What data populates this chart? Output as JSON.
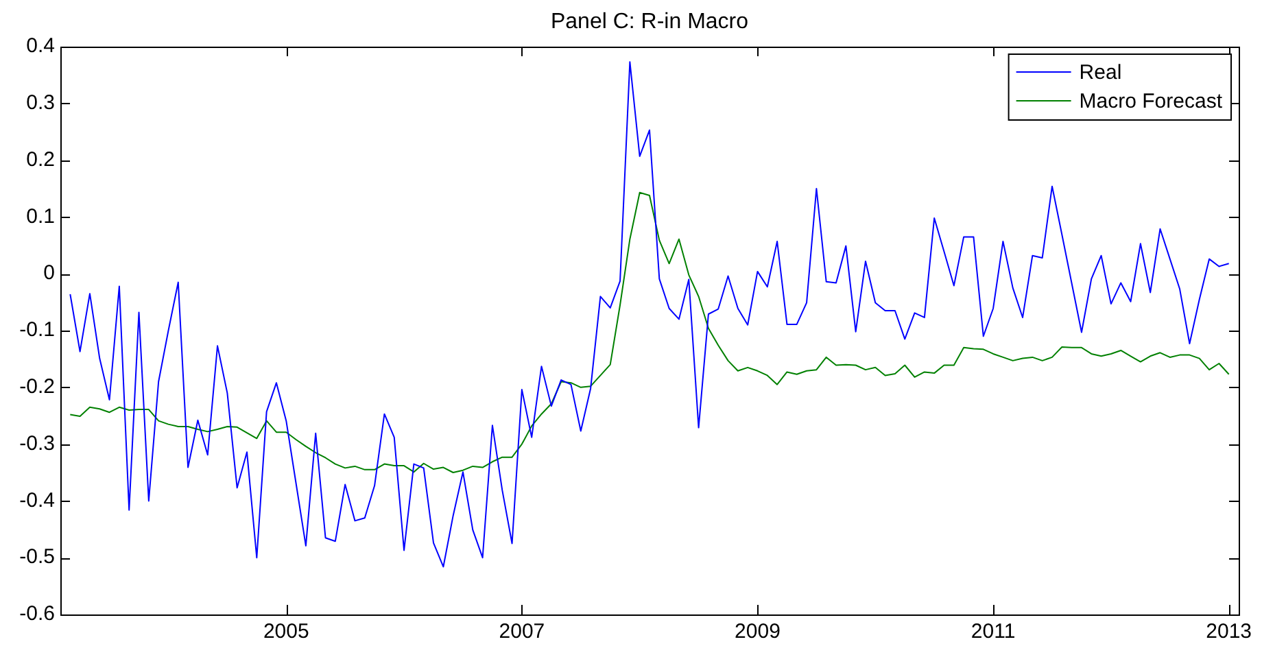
{
  "chart_data": {
    "type": "line",
    "title": "Panel C: R-in Macro",
    "x": [
      "2003-03",
      "2003-04",
      "2003-05",
      "2003-06",
      "2003-07",
      "2003-08",
      "2003-09",
      "2003-10",
      "2003-11",
      "2003-12",
      "2004-01",
      "2004-02",
      "2004-03",
      "2004-04",
      "2004-05",
      "2004-06",
      "2004-07",
      "2004-08",
      "2004-09",
      "2004-10",
      "2004-11",
      "2004-12",
      "2005-01",
      "2005-02",
      "2005-03",
      "2005-04",
      "2005-05",
      "2005-06",
      "2005-07",
      "2005-08",
      "2005-09",
      "2005-10",
      "2005-11",
      "2005-12",
      "2006-01",
      "2006-02",
      "2006-03",
      "2006-04",
      "2006-05",
      "2006-06",
      "2006-07",
      "2006-08",
      "2006-09",
      "2006-10",
      "2006-11",
      "2006-12",
      "2007-01",
      "2007-02",
      "2007-03",
      "2007-04",
      "2007-05",
      "2007-06",
      "2007-07",
      "2007-08",
      "2007-09",
      "2007-10",
      "2007-11",
      "2007-12",
      "2008-01",
      "2008-02",
      "2008-03",
      "2008-04",
      "2008-05",
      "2008-06",
      "2008-07",
      "2008-08",
      "2008-09",
      "2008-10",
      "2008-11",
      "2008-12",
      "2009-01",
      "2009-02",
      "2009-03",
      "2009-04",
      "2009-05",
      "2009-06",
      "2009-07",
      "2009-08",
      "2009-09",
      "2009-10",
      "2009-11",
      "2009-12",
      "2010-01",
      "2010-02",
      "2010-03",
      "2010-04",
      "2010-05",
      "2010-06",
      "2010-07",
      "2010-08",
      "2010-09",
      "2010-10",
      "2010-11",
      "2010-12",
      "2011-01",
      "2011-02",
      "2011-03",
      "2011-04",
      "2011-05",
      "2011-06",
      "2011-07",
      "2011-08",
      "2011-09",
      "2011-10",
      "2011-11",
      "2011-12",
      "2012-01",
      "2012-02",
      "2012-03",
      "2012-04",
      "2012-05",
      "2012-06",
      "2012-07",
      "2012-08",
      "2012-09",
      "2012-10",
      "2012-11",
      "2012-12",
      "2013-01"
    ],
    "series": [
      {
        "name": "Real",
        "color": "#0000ff",
        "values": [
          -0.036,
          -0.137,
          -0.035,
          -0.149,
          -0.222,
          -0.022,
          -0.416,
          -0.068,
          -0.4,
          -0.19,
          -0.1,
          -0.015,
          -0.341,
          -0.258,
          -0.319,
          -0.127,
          -0.21,
          -0.377,
          -0.314,
          -0.5,
          -0.243,
          -0.192,
          -0.259,
          -0.369,
          -0.479,
          -0.281,
          -0.465,
          -0.471,
          -0.371,
          -0.435,
          -0.43,
          -0.373,
          -0.247,
          -0.288,
          -0.487,
          -0.335,
          -0.342,
          -0.474,
          -0.516,
          -0.426,
          -0.349,
          -0.451,
          -0.5,
          -0.267,
          -0.381,
          -0.475,
          -0.204,
          -0.288,
          -0.163,
          -0.233,
          -0.187,
          -0.195,
          -0.277,
          -0.202,
          -0.04,
          -0.06,
          -0.013,
          0.373,
          0.207,
          0.253,
          -0.009,
          -0.061,
          -0.08,
          -0.01,
          -0.271,
          -0.071,
          -0.062,
          -0.004,
          -0.061,
          -0.09,
          0.004,
          -0.023,
          0.057,
          -0.089,
          -0.089,
          -0.051,
          0.15,
          -0.014,
          -0.016,
          0.049,
          -0.102,
          0.022,
          -0.051,
          -0.065,
          -0.065,
          -0.115,
          -0.069,
          -0.077,
          0.098,
          0.039,
          -0.021,
          0.065,
          0.065,
          -0.11,
          -0.061,
          0.057,
          -0.025,
          -0.077,
          0.032,
          0.028,
          0.154,
          0.069,
          -0.017,
          -0.103,
          -0.009,
          0.032,
          -0.053,
          -0.016,
          -0.049,
          0.053,
          -0.033,
          0.079,
          0.026,
          -0.027,
          -0.123,
          -0.045,
          0.026,
          0.013,
          0.018
        ]
      },
      {
        "name": "Macro Forecast",
        "color": "#008000",
        "values": [
          -0.248,
          -0.251,
          -0.235,
          -0.238,
          -0.244,
          -0.235,
          -0.24,
          -0.239,
          -0.239,
          -0.259,
          -0.265,
          -0.269,
          -0.269,
          -0.274,
          -0.278,
          -0.274,
          -0.269,
          -0.27,
          -0.28,
          -0.29,
          -0.259,
          -0.279,
          -0.279,
          -0.292,
          -0.304,
          -0.315,
          -0.324,
          -0.335,
          -0.342,
          -0.339,
          -0.345,
          -0.345,
          -0.335,
          -0.338,
          -0.338,
          -0.349,
          -0.334,
          -0.344,
          -0.341,
          -0.35,
          -0.346,
          -0.339,
          -0.341,
          -0.331,
          -0.323,
          -0.323,
          -0.3,
          -0.268,
          -0.247,
          -0.229,
          -0.19,
          -0.192,
          -0.2,
          -0.198,
          -0.179,
          -0.16,
          -0.055,
          0.061,
          0.143,
          0.138,
          0.059,
          0.018,
          0.061,
          -0.002,
          -0.04,
          -0.096,
          -0.126,
          -0.153,
          -0.171,
          -0.165,
          -0.171,
          -0.179,
          -0.195,
          -0.173,
          -0.177,
          -0.171,
          -0.169,
          -0.147,
          -0.161,
          -0.16,
          -0.161,
          -0.169,
          -0.165,
          -0.179,
          -0.176,
          -0.161,
          -0.182,
          -0.173,
          -0.175,
          -0.161,
          -0.161,
          -0.13,
          -0.132,
          -0.133,
          -0.141,
          -0.147,
          -0.153,
          -0.149,
          -0.147,
          -0.153,
          -0.147,
          -0.129,
          -0.13,
          -0.13,
          -0.141,
          -0.145,
          -0.141,
          -0.135,
          -0.145,
          -0.155,
          -0.145,
          -0.139,
          -0.147,
          -0.143,
          -0.143,
          -0.149,
          -0.169,
          -0.158,
          -0.177
        ]
      }
    ],
    "xlim": [
      "2003-02",
      "2013-02"
    ],
    "xticks": [
      "2005",
      "2007",
      "2009",
      "2011",
      "2013"
    ],
    "ylim": [
      -0.6,
      0.4
    ],
    "yticks": [
      -0.6,
      -0.5,
      -0.4,
      -0.3,
      -0.2,
      -0.1,
      0,
      0.1,
      0.2,
      0.3,
      0.4
    ],
    "grid": false,
    "legend": "top right",
    "line_style": "solid",
    "marker": "none"
  }
}
